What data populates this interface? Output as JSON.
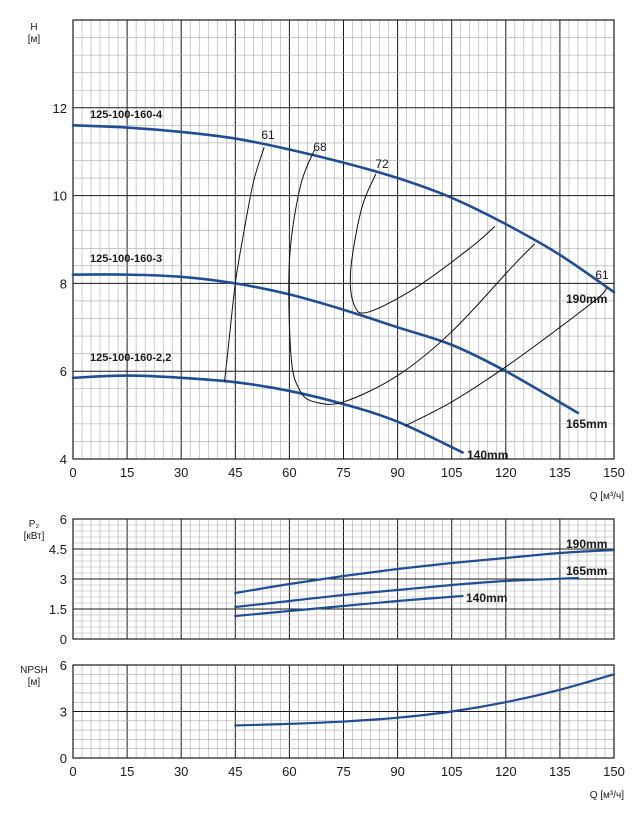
{
  "colors": {
    "curve": "#1f4e96",
    "grid_major": "#1a1a1a",
    "grid_minor": "#a9a9a9",
    "text": "#1a1a1a"
  },
  "chart_data": [
    {
      "type": "line",
      "ylabel_line1": "H",
      "ylabel_line2": "[м]",
      "xlabel": "Q [м³/ч]",
      "xlim": [
        0,
        150
      ],
      "ylim": [
        4,
        14
      ],
      "x_ticks": [
        "0",
        "15",
        "30",
        "45",
        "60",
        "75",
        "90",
        "105",
        "120",
        "135",
        "150"
      ],
      "y_ticks": [
        "4",
        "6",
        "8",
        "10",
        "12"
      ],
      "series": [
        {
          "name": "125-100-160-4",
          "size": "190mm",
          "x": [
            0,
            15,
            30,
            45,
            60,
            75,
            90,
            105,
            120,
            135,
            150
          ],
          "y": [
            11.6,
            11.55,
            11.45,
            11.3,
            11.05,
            10.75,
            10.4,
            9.95,
            9.35,
            8.65,
            7.8
          ]
        },
        {
          "name": "125-100-160-3",
          "size": "165mm",
          "x": [
            0,
            15,
            30,
            45,
            60,
            75,
            90,
            105,
            120,
            140
          ],
          "y": [
            8.2,
            8.2,
            8.15,
            8.0,
            7.75,
            7.4,
            7.0,
            6.6,
            6.0,
            5.05
          ]
        },
        {
          "name": "125-100-160-2,2",
          "size": "140mm",
          "x": [
            0,
            15,
            30,
            45,
            60,
            75,
            90,
            108
          ],
          "y": [
            5.85,
            5.9,
            5.85,
            5.75,
            5.55,
            5.25,
            4.85,
            4.15
          ]
        }
      ],
      "efficiency": [
        {
          "label": "61",
          "points": [
            [
              42,
              5.75
            ],
            [
              43,
              6.5
            ],
            [
              45,
              8.0
            ],
            [
              47,
              9.0
            ],
            [
              50,
              10.3
            ],
            [
              53,
              11.1
            ]
          ]
        },
        {
          "label": "68",
          "points": [
            [
              67,
              11.05
            ],
            [
              63,
              10.2
            ],
            [
              60,
              8.5
            ],
            [
              60.5,
              6.3
            ],
            [
              63,
              5.55
            ],
            [
              67,
              5.3
            ],
            [
              75,
              5.3
            ],
            [
              90,
              5.9
            ],
            [
              105,
              6.9
            ],
            [
              122,
              8.4
            ],
            [
              128,
              8.9
            ]
          ]
        },
        {
          "label": "72",
          "points": [
            [
              84,
              10.5
            ],
            [
              80,
              9.7
            ],
            [
              77,
              8.3
            ],
            [
              78,
              7.5
            ],
            [
              82,
              7.35
            ],
            [
              95,
              7.9
            ],
            [
              110,
              8.8
            ],
            [
              117,
              9.3
            ]
          ]
        },
        {
          "label": "61",
          "points": [
            [
              92,
              4.75
            ],
            [
              105,
              5.3
            ],
            [
              120,
              6.1
            ],
            [
              135,
              7.0
            ],
            [
              146,
              7.7
            ],
            [
              148,
              7.9
            ]
          ]
        }
      ]
    },
    {
      "type": "line",
      "ylabel_line1": "P₂",
      "ylabel_line2": "[кВт]",
      "xlim": [
        0,
        150
      ],
      "ylim": [
        0,
        6
      ],
      "y_ticks": [
        "0",
        "1.5",
        "3",
        "4.5",
        "6"
      ],
      "series": [
        {
          "size": "190mm",
          "x": [
            45,
            60,
            75,
            90,
            105,
            120,
            135,
            150
          ],
          "y": [
            2.3,
            2.75,
            3.15,
            3.5,
            3.8,
            4.05,
            4.3,
            4.45
          ]
        },
        {
          "size": "165mm",
          "x": [
            45,
            60,
            75,
            90,
            105,
            120,
            140
          ],
          "y": [
            1.6,
            1.9,
            2.2,
            2.45,
            2.7,
            2.9,
            3.05
          ]
        },
        {
          "size": "140mm",
          "x": [
            45,
            60,
            75,
            90,
            108
          ],
          "y": [
            1.15,
            1.4,
            1.65,
            1.9,
            2.15
          ]
        }
      ]
    },
    {
      "type": "line",
      "ylabel_line1": "NPSH",
      "ylabel_line2": "[м]",
      "xlabel": "Q [м³/ч]",
      "xlim": [
        0,
        150
      ],
      "ylim": [
        0,
        6
      ],
      "x_ticks": [
        "0",
        "15",
        "30",
        "45",
        "60",
        "75",
        "90",
        "105",
        "120",
        "135",
        "150"
      ],
      "y_ticks": [
        "0",
        "3",
        "6"
      ],
      "series": [
        {
          "x": [
            45,
            60,
            75,
            90,
            105,
            120,
            135,
            150
          ],
          "y": [
            2.1,
            2.2,
            2.35,
            2.6,
            3.0,
            3.6,
            4.4,
            5.4
          ]
        }
      ]
    }
  ]
}
